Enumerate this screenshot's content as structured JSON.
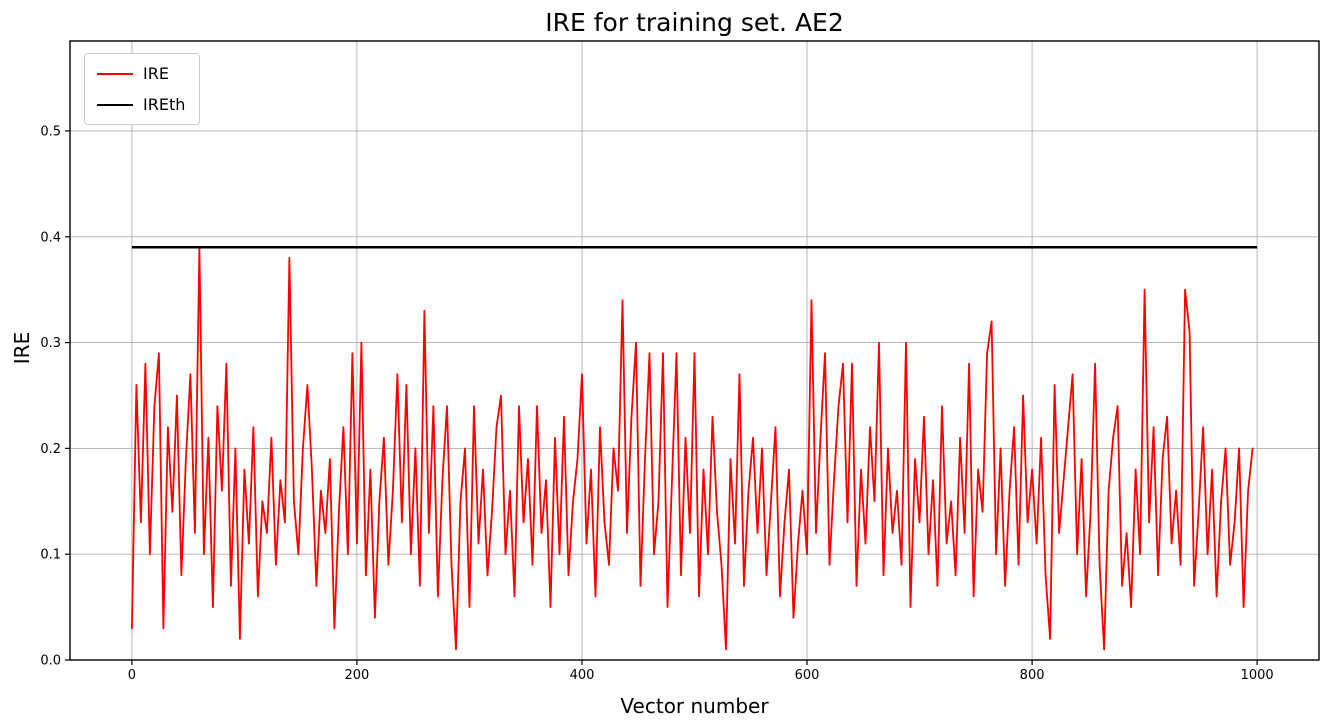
{
  "chart_data": {
    "type": "line",
    "title": "IRE for training set. AE2",
    "xlabel": "Vector number",
    "ylabel": "IRE",
    "xlim": [
      -55,
      1055
    ],
    "ylim": [
      0,
      0.585
    ],
    "xticks": [
      0,
      200,
      400,
      600,
      800,
      1000
    ],
    "yticks": [
      0.0,
      0.1,
      0.2,
      0.3,
      0.4,
      0.5
    ],
    "grid": true,
    "grid_color": "#b0b0b0",
    "legend": {
      "position": "upper-left"
    },
    "series": [
      {
        "name": "IRE",
        "color": "#ff0000",
        "line_width": 1.8,
        "x_start": 0,
        "x_step": 4,
        "values": [
          0.03,
          0.26,
          0.13,
          0.28,
          0.1,
          0.24,
          0.29,
          0.03,
          0.22,
          0.14,
          0.25,
          0.08,
          0.19,
          0.27,
          0.12,
          0.39,
          0.1,
          0.21,
          0.05,
          0.24,
          0.16,
          0.28,
          0.07,
          0.2,
          0.02,
          0.18,
          0.11,
          0.22,
          0.06,
          0.15,
          0.12,
          0.21,
          0.09,
          0.17,
          0.13,
          0.38,
          0.15,
          0.1,
          0.2,
          0.26,
          0.18,
          0.07,
          0.16,
          0.12,
          0.19,
          0.03,
          0.14,
          0.22,
          0.1,
          0.29,
          0.11,
          0.3,
          0.08,
          0.18,
          0.04,
          0.15,
          0.21,
          0.09,
          0.16,
          0.27,
          0.13,
          0.26,
          0.1,
          0.2,
          0.07,
          0.33,
          0.12,
          0.24,
          0.06,
          0.17,
          0.24,
          0.09,
          0.01,
          0.15,
          0.2,
          0.05,
          0.24,
          0.11,
          0.18,
          0.08,
          0.14,
          0.22,
          0.25,
          0.1,
          0.16,
          0.06,
          0.24,
          0.13,
          0.19,
          0.09,
          0.24,
          0.12,
          0.17,
          0.05,
          0.21,
          0.1,
          0.23,
          0.08,
          0.15,
          0.19,
          0.27,
          0.11,
          0.18,
          0.06,
          0.22,
          0.13,
          0.09,
          0.2,
          0.16,
          0.34,
          0.12,
          0.23,
          0.3,
          0.07,
          0.19,
          0.29,
          0.1,
          0.15,
          0.29,
          0.05,
          0.17,
          0.29,
          0.08,
          0.21,
          0.12,
          0.29,
          0.06,
          0.18,
          0.1,
          0.23,
          0.14,
          0.09,
          0.01,
          0.19,
          0.11,
          0.27,
          0.07,
          0.16,
          0.21,
          0.12,
          0.2,
          0.08,
          0.15,
          0.22,
          0.06,
          0.13,
          0.18,
          0.04,
          0.11,
          0.16,
          0.1,
          0.34,
          0.12,
          0.21,
          0.29,
          0.09,
          0.17,
          0.24,
          0.28,
          0.13,
          0.28,
          0.07,
          0.18,
          0.11,
          0.22,
          0.15,
          0.3,
          0.08,
          0.2,
          0.12,
          0.16,
          0.09,
          0.3,
          0.05,
          0.19,
          0.13,
          0.23,
          0.1,
          0.17,
          0.07,
          0.24,
          0.11,
          0.15,
          0.08,
          0.21,
          0.12,
          0.28,
          0.06,
          0.18,
          0.14,
          0.29,
          0.32,
          0.1,
          0.2,
          0.07,
          0.16,
          0.22,
          0.09,
          0.25,
          0.13,
          0.18,
          0.11,
          0.21,
          0.08,
          0.02,
          0.26,
          0.12,
          0.17,
          0.22,
          0.27,
          0.1,
          0.19,
          0.06,
          0.14,
          0.28,
          0.09,
          0.01,
          0.16,
          0.21,
          0.24,
          0.07,
          0.12,
          0.05,
          0.18,
          0.1,
          0.35,
          0.13,
          0.22,
          0.08,
          0.19,
          0.23,
          0.11,
          0.16,
          0.09,
          0.35,
          0.31,
          0.07,
          0.14,
          0.22,
          0.1,
          0.18,
          0.06,
          0.15,
          0.2,
          0.09,
          0.13,
          0.2,
          0.05,
          0.16,
          0.2
        ]
      },
      {
        "name": "IREth",
        "color": "#000000",
        "line_width": 2.5,
        "type": "hline",
        "value": 0.39,
        "x_range": [
          0,
          1000
        ]
      }
    ]
  }
}
